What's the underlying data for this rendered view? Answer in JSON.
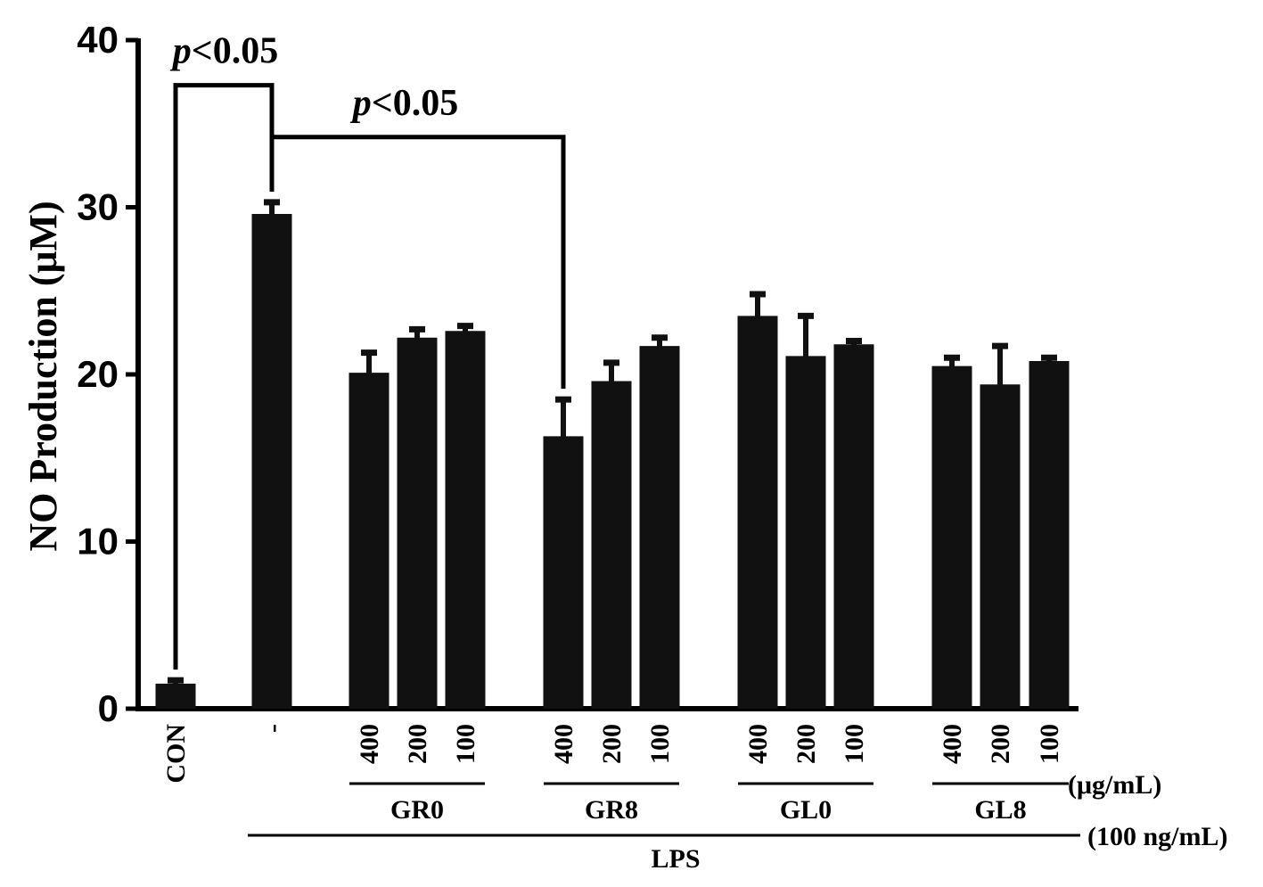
{
  "chart_data": {
    "type": "bar",
    "ylabel": "NO Production (μM)",
    "ylim": [
      0,
      40
    ],
    "yticks": [
      "0",
      "10",
      "20",
      "30",
      "40"
    ],
    "categories": [
      "CON",
      "-",
      "400",
      "200",
      "100",
      "400",
      "200",
      "100",
      "400",
      "200",
      "100",
      "400",
      "200",
      "100"
    ],
    "values": [
      1.5,
      29.6,
      20.1,
      22.2,
      22.6,
      16.3,
      19.6,
      21.7,
      23.5,
      21.1,
      21.8,
      20.5,
      19.4,
      20.8
    ],
    "errors": [
      0.2,
      0.7,
      1.2,
      0.5,
      0.3,
      2.2,
      1.1,
      0.5,
      1.3,
      2.4,
      0.2,
      0.5,
      2.3,
      0.2
    ],
    "groups": [
      {
        "name": "GR0",
        "bars": [
          2,
          3,
          4
        ]
      },
      {
        "name": "GR8",
        "bars": [
          5,
          6,
          7
        ]
      },
      {
        "name": "GL0",
        "bars": [
          8,
          9,
          10
        ]
      },
      {
        "name": "GL8",
        "bars": [
          11,
          12,
          13
        ]
      }
    ],
    "concentration_unit": "(μg/mL)",
    "treatment": {
      "name": "LPS",
      "unit": "(100 ng/mL)",
      "bars": [
        1,
        13
      ]
    },
    "significance": [
      {
        "label": "p<0.05",
        "from": 0,
        "to": 1,
        "level": 37.3
      },
      {
        "label": "p<0.05",
        "from": 1,
        "to": 5,
        "level": 34.2
      }
    ],
    "bar_color": "#111111",
    "grid": false
  }
}
